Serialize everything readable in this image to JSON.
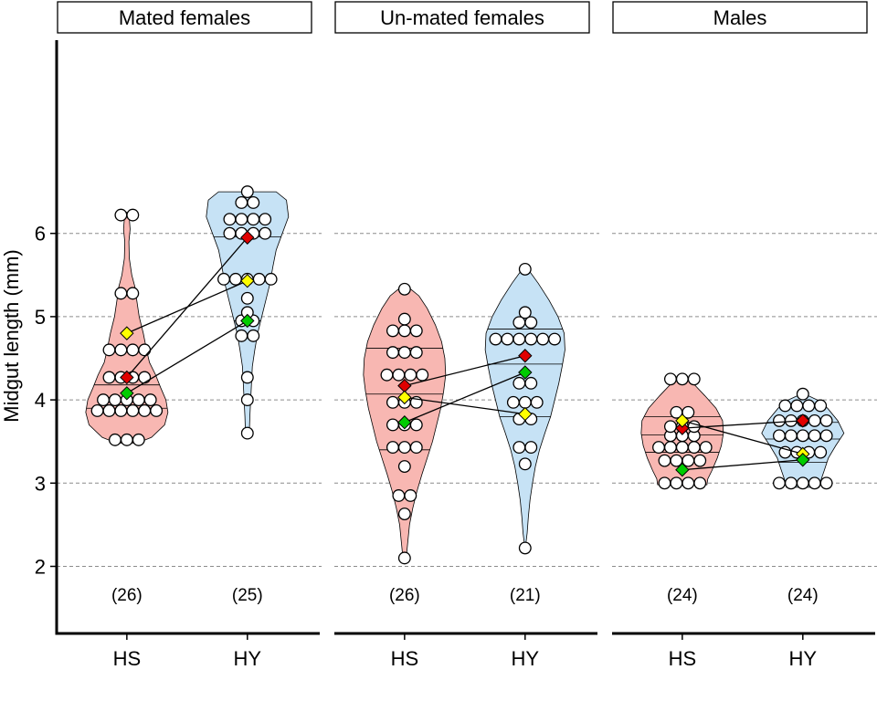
{
  "chart_data": {
    "type": "violin",
    "ylabel": "Midgut length (mm)",
    "ylim": [
      1.3,
      7.6
    ],
    "yticks": [
      2,
      3,
      4,
      5,
      6
    ],
    "categories": [
      "HS",
      "HY"
    ],
    "colors": {
      "HS": "#f8b7b2",
      "HY": "#c6e2f5",
      "red": "#e00000",
      "yellow": "#ffff00",
      "green": "#00cc00",
      "grid": "#8c8c8c"
    },
    "panels": [
      {
        "title": "Mated females",
        "groups": [
          {
            "label": "HS",
            "n_label": "(26)",
            "quartiles": [
              3.9,
              4.18,
              4.6
            ],
            "density": [
              [
                3.48,
                0.25
              ],
              [
                3.55,
                0.6
              ],
              [
                3.7,
                0.92
              ],
              [
                3.85,
                1.0
              ],
              [
                4.0,
                0.95
              ],
              [
                4.15,
                0.82
              ],
              [
                4.3,
                0.7
              ],
              [
                4.45,
                0.55
              ],
              [
                4.6,
                0.48
              ],
              [
                4.8,
                0.4
              ],
              [
                5.0,
                0.3
              ],
              [
                5.2,
                0.24
              ],
              [
                5.35,
                0.2
              ],
              [
                5.5,
                0.12
              ],
              [
                5.7,
                0.06
              ],
              [
                5.9,
                0.05
              ],
              [
                6.05,
                0.08
              ],
              [
                6.18,
                0.06
              ],
              [
                6.25,
                0.0
              ]
            ],
            "points": [
              3.52,
              3.52,
              3.52,
              3.87,
              3.87,
              3.87,
              3.87,
              3.87,
              3.87,
              4.0,
              4.0,
              4.0,
              4.0,
              4.0,
              4.27,
              4.27,
              4.27,
              4.27,
              4.6,
              4.6,
              4.6,
              4.6,
              5.28,
              5.28,
              6.22,
              6.22
            ],
            "diamonds": {
              "red": 4.27,
              "yellow": 4.8,
              "green": 4.08
            }
          },
          {
            "label": "HY",
            "n_label": "(25)",
            "quartiles": [
              4.95,
              5.47,
              5.96
            ],
            "density": [
              [
                3.58,
                0.0
              ],
              [
                3.65,
                0.05
              ],
              [
                3.8,
                0.06
              ],
              [
                4.0,
                0.08
              ],
              [
                4.2,
                0.1
              ],
              [
                4.4,
                0.12
              ],
              [
                4.6,
                0.18
              ],
              [
                4.8,
                0.25
              ],
              [
                5.0,
                0.35
              ],
              [
                5.2,
                0.45
              ],
              [
                5.4,
                0.55
              ],
              [
                5.6,
                0.62
              ],
              [
                5.8,
                0.7
              ],
              [
                6.0,
                0.85
              ],
              [
                6.2,
                1.0
              ],
              [
                6.4,
                0.95
              ],
              [
                6.5,
                0.7
              ]
            ],
            "points": [
              3.6,
              4.0,
              4.27,
              4.77,
              4.77,
              4.95,
              4.95,
              5.05,
              5.22,
              5.45,
              5.45,
              5.45,
              5.45,
              5.45,
              6.0,
              6.0,
              6.0,
              6.0,
              6.17,
              6.17,
              6.17,
              6.17,
              6.37,
              6.37,
              6.5
            ],
            "diamonds": {
              "red": 5.95,
              "yellow": 5.43,
              "green": 4.95
            }
          }
        ]
      },
      {
        "title": "Un-mated females",
        "groups": [
          {
            "label": "HS",
            "n_label": "(26)",
            "quartiles": [
              3.4,
              4.07,
              4.62
            ],
            "density": [
              [
                2.05,
                0.0
              ],
              [
                2.1,
                0.04
              ],
              [
                2.3,
                0.08
              ],
              [
                2.5,
                0.12
              ],
              [
                2.7,
                0.2
              ],
              [
                2.9,
                0.3
              ],
              [
                3.1,
                0.42
              ],
              [
                3.3,
                0.55
              ],
              [
                3.5,
                0.68
              ],
              [
                3.7,
                0.78
              ],
              [
                3.9,
                0.88
              ],
              [
                4.1,
                0.95
              ],
              [
                4.3,
                1.0
              ],
              [
                4.5,
                0.98
              ],
              [
                4.7,
                0.9
              ],
              [
                4.9,
                0.75
              ],
              [
                5.1,
                0.55
              ],
              [
                5.25,
                0.35
              ],
              [
                5.33,
                0.15
              ]
            ],
            "points": [
              2.1,
              2.63,
              2.85,
              2.85,
              3.2,
              3.43,
              3.43,
              3.43,
              3.7,
              3.7,
              3.7,
              3.97,
              3.97,
              3.97,
              4.3,
              4.3,
              4.3,
              4.3,
              4.57,
              4.57,
              4.57,
              4.83,
              4.83,
              4.83,
              4.97,
              5.33
            ],
            "diamonds": {
              "red": 4.17,
              "yellow": 4.03,
              "green": 3.73
            }
          },
          {
            "label": "HY",
            "n_label": "(21)",
            "quartiles": [
              3.8,
              4.43,
              4.85
            ],
            "density": [
              [
                2.2,
                0.0
              ],
              [
                2.4,
                0.05
              ],
              [
                2.6,
                0.08
              ],
              [
                2.8,
                0.12
              ],
              [
                3.0,
                0.18
              ],
              [
                3.2,
                0.25
              ],
              [
                3.4,
                0.35
              ],
              [
                3.6,
                0.48
              ],
              [
                3.8,
                0.62
              ],
              [
                4.0,
                0.72
              ],
              [
                4.2,
                0.82
              ],
              [
                4.4,
                0.9
              ],
              [
                4.6,
                0.97
              ],
              [
                4.8,
                0.95
              ],
              [
                5.0,
                0.8
              ],
              [
                5.2,
                0.58
              ],
              [
                5.4,
                0.32
              ],
              [
                5.55,
                0.1
              ],
              [
                5.6,
                0.0
              ]
            ],
            "points": [
              2.22,
              3.23,
              3.43,
              3.43,
              3.77,
              3.77,
              3.97,
              3.97,
              3.97,
              4.2,
              4.2,
              4.73,
              4.73,
              4.73,
              4.73,
              4.73,
              4.73,
              4.93,
              4.93,
              5.05,
              5.57
            ],
            "diamonds": {
              "red": 4.53,
              "yellow": 3.83,
              "green": 4.33
            }
          }
        ]
      },
      {
        "title": "Males",
        "groups": [
          {
            "label": "HS",
            "n_label": "(24)",
            "quartiles": [
              3.37,
              3.58,
              3.8
            ],
            "density": [
              [
                2.98,
                0.6
              ],
              [
                3.05,
                0.62
              ],
              [
                3.15,
                0.72
              ],
              [
                3.3,
                0.85
              ],
              [
                3.45,
                0.95
              ],
              [
                3.6,
                1.0
              ],
              [
                3.75,
                0.98
              ],
              [
                3.9,
                0.82
              ],
              [
                4.05,
                0.55
              ],
              [
                4.18,
                0.3
              ],
              [
                4.26,
                0.12
              ],
              [
                4.28,
                0.0
              ]
            ],
            "points": [
              3.0,
              3.0,
              3.0,
              3.0,
              3.27,
              3.27,
              3.27,
              3.27,
              3.43,
              3.43,
              3.43,
              3.43,
              3.43,
              3.57,
              3.57,
              3.57,
              3.68,
              3.68,
              3.68,
              3.85,
              3.85,
              4.25,
              4.25,
              4.25
            ],
            "diamonds": {
              "red": 3.66,
              "yellow": 3.75,
              "green": 3.16
            }
          },
          {
            "label": "HY",
            "n_label": "(24)",
            "quartiles": [
              3.25,
              3.53,
              3.73
            ],
            "density": [
              [
                2.95,
                0.4
              ],
              [
                3.05,
                0.45
              ],
              [
                3.15,
                0.52
              ],
              [
                3.3,
                0.62
              ],
              [
                3.45,
                0.8
              ],
              [
                3.6,
                1.0
              ],
              [
                3.75,
                0.85
              ],
              [
                3.9,
                0.6
              ],
              [
                4.0,
                0.35
              ],
              [
                4.08,
                0.0
              ]
            ],
            "points": [
              3.0,
              3.0,
              3.0,
              3.0,
              3.0,
              3.37,
              3.37,
              3.37,
              3.37,
              3.57,
              3.57,
              3.57,
              3.57,
              3.57,
              3.75,
              3.75,
              3.75,
              3.75,
              3.93,
              3.93,
              3.93,
              3.93,
              4.07,
              3.75
            ],
            "diamonds": {
              "red": 3.75,
              "yellow": 3.35,
              "green": 3.28
            }
          }
        ]
      }
    ]
  }
}
